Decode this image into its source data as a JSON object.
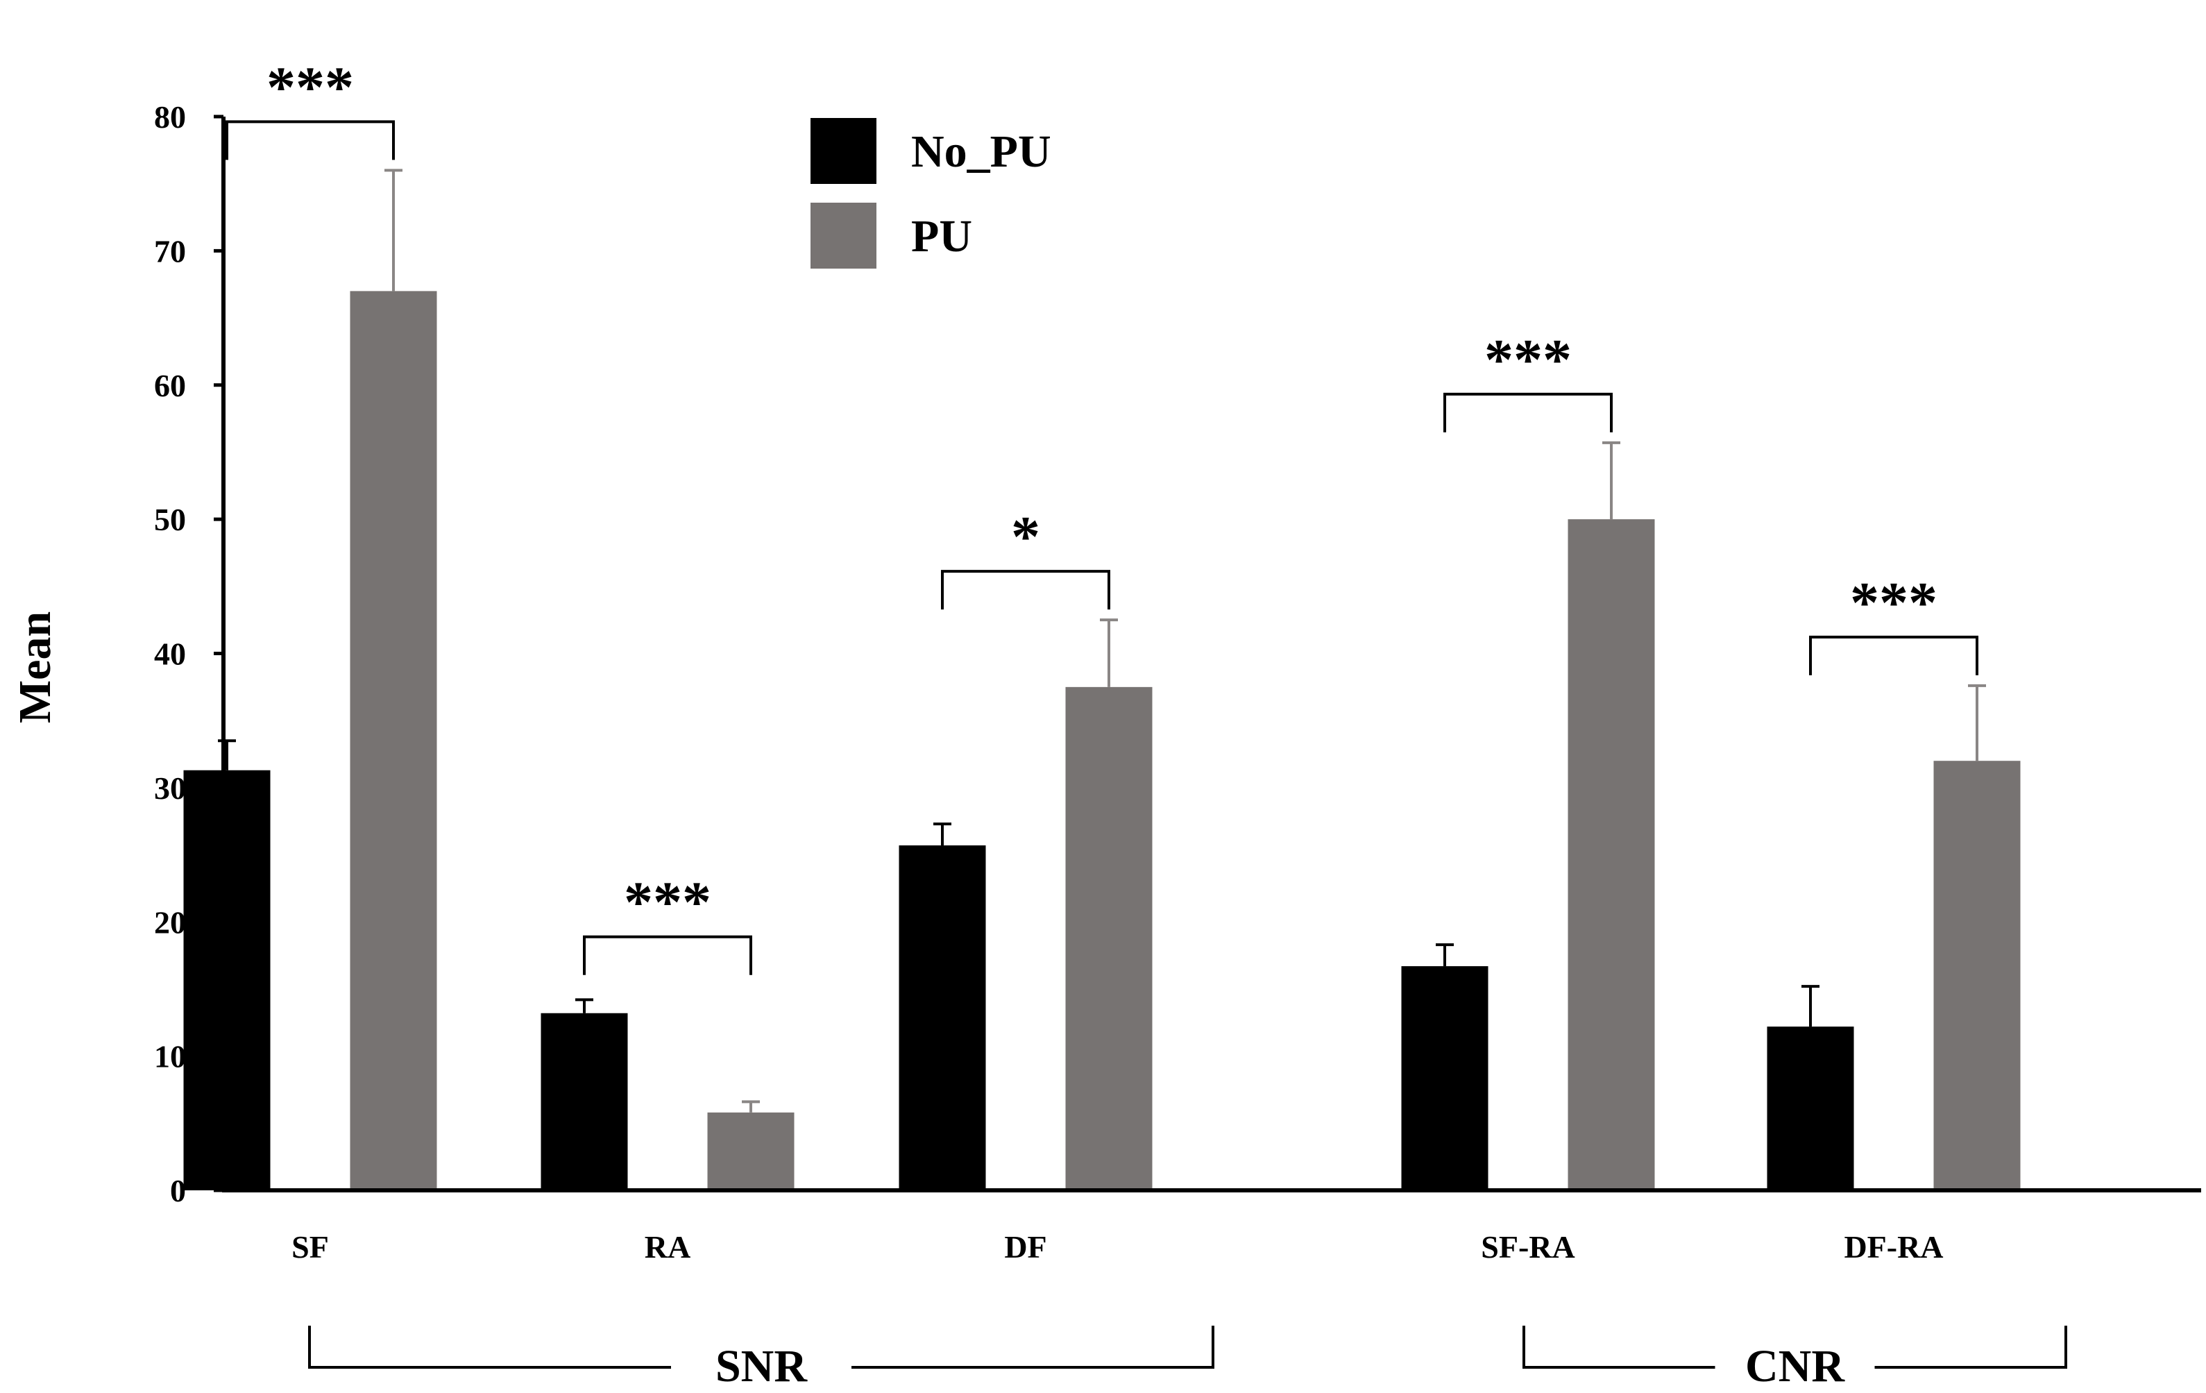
{
  "chart_data": {
    "type": "bar",
    "title": "",
    "xlabel": "",
    "ylabel": "Mean",
    "ylim": [
      0,
      80
    ],
    "yticks": [
      0,
      10,
      20,
      30,
      40,
      50,
      60,
      70,
      80
    ],
    "categories": [
      "SF",
      "RA",
      "DF",
      "SF-RA",
      "DF-RA"
    ],
    "series": [
      {
        "name": "No_PU",
        "color": "#000000",
        "values": [
          31.3,
          13.2,
          25.7,
          16.7,
          12.2
        ],
        "errors": [
          2.2,
          1.0,
          1.6,
          1.6,
          3.0
        ]
      },
      {
        "name": "PU",
        "color": "#777372",
        "values": [
          67.0,
          5.8,
          37.5,
          50.0,
          32.0
        ],
        "errors": [
          9.0,
          0.8,
          5.0,
          5.7,
          5.6
        ]
      }
    ],
    "significance": [
      {
        "category": "SF",
        "label": "***"
      },
      {
        "category": "RA",
        "label": "***"
      },
      {
        "category": "DF",
        "label": "*"
      },
      {
        "category": "SF-RA",
        "label": "***"
      },
      {
        "category": "DF-RA",
        "label": "***"
      }
    ],
    "groups": [
      {
        "label": "SNR",
        "categories": [
          "SF",
          "RA",
          "DF"
        ]
      },
      {
        "label": "CNR",
        "categories": [
          "SF-RA",
          "DF-RA"
        ]
      }
    ],
    "legend_position": "top-center",
    "grid": false
  }
}
